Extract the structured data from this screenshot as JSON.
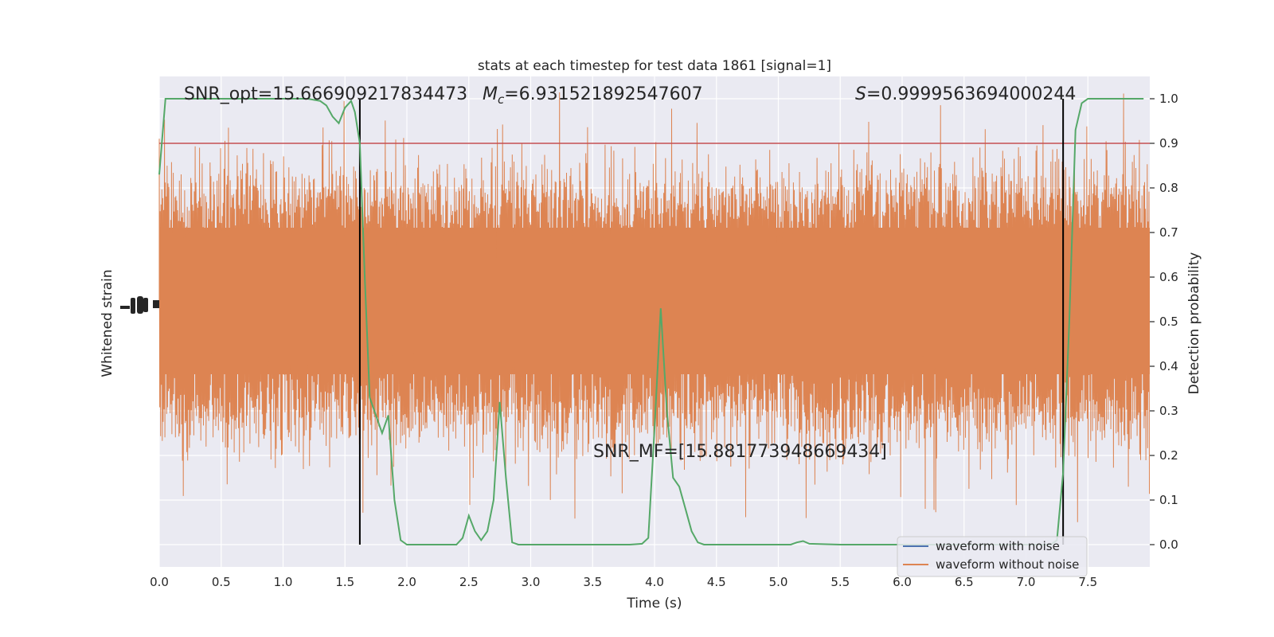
{
  "chart_data": {
    "type": "line",
    "title": "stats at each timestep for test data 1861 [signal=1]",
    "xlabel": "Time (s)",
    "ylabel_left": "Whitened strain",
    "ylabel_right": "Detection probability",
    "xlim": [
      0,
      8
    ],
    "ylim_right": [
      -0.05,
      1.05
    ],
    "x_ticks": [
      "0.0",
      "0.5",
      "1.0",
      "1.5",
      "2.0",
      "2.5",
      "3.0",
      "3.5",
      "4.0",
      "4.5",
      "5.0",
      "5.5",
      "6.0",
      "6.5",
      "7.0",
      "7.5"
    ],
    "y_ticks_right": [
      "0.0",
      "0.1",
      "0.2",
      "0.3",
      "0.4",
      "0.5",
      "0.6",
      "0.7",
      "0.8",
      "0.9",
      "1.0"
    ],
    "grid": true,
    "legend_position": "lower-right",
    "annotations": {
      "snr_opt": "SNR_opt=15.666909217834473",
      "mc_symbol": "M",
      "mc_subscript": "c",
      "mc_value": "=6.931521892547607",
      "s_symbol": "S",
      "s_value": "=0.9999563694000244",
      "snr_mf": "SNR_MF=[15.881773948669434]"
    },
    "threshold": {
      "y": 0.9,
      "color": "#c44e52"
    },
    "vertical_markers": [
      1.62,
      7.3
    ],
    "series": [
      {
        "name": "waveform with noise",
        "color": "#4c72b0",
        "style": "dense noise strain trace"
      },
      {
        "name": "waveform without noise",
        "color": "#dd8452",
        "style": "dense noise strain trace"
      },
      {
        "color": "#55a868",
        "x": [
          0.0,
          0.05,
          0.1,
          0.2,
          0.3,
          0.5,
          0.7,
          1.0,
          1.2,
          1.3,
          1.35,
          1.4,
          1.45,
          1.5,
          1.55,
          1.58,
          1.62,
          1.66,
          1.7,
          1.75,
          1.8,
          1.85,
          1.9,
          1.95,
          2.0,
          2.05,
          2.2,
          2.3,
          2.4,
          2.45,
          2.5,
          2.55,
          2.6,
          2.65,
          2.7,
          2.75,
          2.8,
          2.85,
          2.9,
          3.0,
          3.2,
          3.5,
          3.8,
          3.9,
          3.95,
          4.0,
          4.05,
          4.1,
          4.15,
          4.2,
          4.25,
          4.3,
          4.35,
          4.4,
          4.5,
          4.8,
          4.9,
          5.0,
          5.1,
          5.15,
          5.2,
          5.25,
          5.5,
          5.8,
          6.1,
          6.5,
          6.9,
          7.1,
          7.2,
          7.25,
          7.3,
          7.35,
          7.4,
          7.45,
          7.5,
          7.6,
          7.8,
          7.95
        ],
        "y": [
          0.83,
          1.0,
          1.0,
          1.0,
          1.0,
          1.0,
          1.0,
          1.0,
          1.0,
          0.995,
          0.985,
          0.96,
          0.945,
          0.98,
          0.995,
          0.97,
          0.9,
          0.6,
          0.33,
          0.29,
          0.25,
          0.29,
          0.1,
          0.01,
          0.0,
          0.0,
          0.0,
          0.0,
          0.0,
          0.015,
          0.065,
          0.03,
          0.01,
          0.03,
          0.1,
          0.32,
          0.15,
          0.005,
          0.0,
          0.0,
          0.0,
          0.0,
          0.0,
          0.002,
          0.015,
          0.26,
          0.53,
          0.3,
          0.15,
          0.13,
          0.08,
          0.03,
          0.005,
          0.0,
          0.0,
          0.0,
          0.0,
          0.0,
          0.0,
          0.005,
          0.008,
          0.002,
          0.0,
          0.0,
          0.0,
          0.0,
          0.0,
          0.0,
          0.0,
          0.01,
          0.16,
          0.5,
          0.93,
          0.99,
          1.0,
          1.0,
          1.0,
          1.0
        ]
      }
    ]
  }
}
